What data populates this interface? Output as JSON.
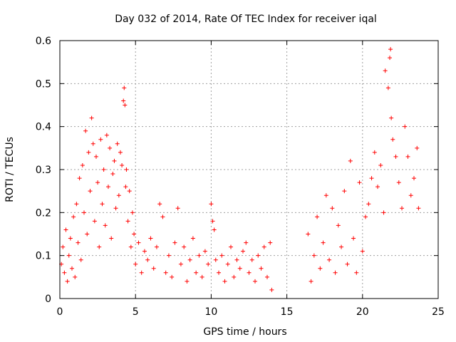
{
  "chart_data": {
    "type": "scatter",
    "title": "Day 032 of 2014, Rate Of TEC Index for receiver iqal",
    "xlabel": "GPS time / hours",
    "ylabel": "ROTI / TECUs",
    "xlim": [
      0,
      25
    ],
    "ylim": [
      0,
      0.6
    ],
    "x_ticks": [
      0,
      5,
      10,
      15,
      20,
      25
    ],
    "y_ticks": [
      0,
      0.1,
      0.2,
      0.3,
      0.4,
      0.5,
      0.6
    ],
    "x_tick_labels": [
      "0",
      "5",
      "10",
      "15",
      "20",
      "25"
    ],
    "y_tick_labels": [
      "0",
      "0.1",
      "0.2",
      "0.3",
      "0.4",
      "0.5",
      "0.6"
    ],
    "grid": true,
    "marker": "+",
    "marker_color": "#ff0000",
    "series": [
      {
        "name": "ROTI",
        "points": [
          [
            0.1,
            0.08
          ],
          [
            0.2,
            0.12
          ],
          [
            0.3,
            0.06
          ],
          [
            0.4,
            0.16
          ],
          [
            0.5,
            0.04
          ],
          [
            0.6,
            0.1
          ],
          [
            0.7,
            0.14
          ],
          [
            0.8,
            0.07
          ],
          [
            0.9,
            0.19
          ],
          [
            1.0,
            0.05
          ],
          [
            1.1,
            0.22
          ],
          [
            1.2,
            0.13
          ],
          [
            1.3,
            0.28
          ],
          [
            1.4,
            0.09
          ],
          [
            1.5,
            0.31
          ],
          [
            1.6,
            0.2
          ],
          [
            1.7,
            0.39
          ],
          [
            1.8,
            0.15
          ],
          [
            1.9,
            0.34
          ],
          [
            2.0,
            0.25
          ],
          [
            2.1,
            0.42
          ],
          [
            2.2,
            0.36
          ],
          [
            2.3,
            0.18
          ],
          [
            2.4,
            0.33
          ],
          [
            2.5,
            0.27
          ],
          [
            2.6,
            0.12
          ],
          [
            2.7,
            0.37
          ],
          [
            2.8,
            0.22
          ],
          [
            2.9,
            0.3
          ],
          [
            3.0,
            0.17
          ],
          [
            3.1,
            0.38
          ],
          [
            3.2,
            0.26
          ],
          [
            3.3,
            0.35
          ],
          [
            3.4,
            0.14
          ],
          [
            3.5,
            0.29
          ],
          [
            3.6,
            0.32
          ],
          [
            3.7,
            0.21
          ],
          [
            3.8,
            0.36
          ],
          [
            3.9,
            0.24
          ],
          [
            4.0,
            0.34
          ],
          [
            4.1,
            0.31
          ],
          [
            4.2,
            0.46
          ],
          [
            4.25,
            0.49
          ],
          [
            4.3,
            0.45
          ],
          [
            4.35,
            0.26
          ],
          [
            4.4,
            0.3
          ],
          [
            4.5,
            0.18
          ],
          [
            4.6,
            0.25
          ],
          [
            4.7,
            0.12
          ],
          [
            4.8,
            0.2
          ],
          [
            4.9,
            0.15
          ],
          [
            5.0,
            0.08
          ],
          [
            5.2,
            0.13
          ],
          [
            5.4,
            0.06
          ],
          [
            5.6,
            0.11
          ],
          [
            5.8,
            0.09
          ],
          [
            6.0,
            0.14
          ],
          [
            6.2,
            0.07
          ],
          [
            6.4,
            0.12
          ],
          [
            6.6,
            0.22
          ],
          [
            6.8,
            0.19
          ],
          [
            7.0,
            0.06
          ],
          [
            7.2,
            0.1
          ],
          [
            7.4,
            0.05
          ],
          [
            7.6,
            0.13
          ],
          [
            7.8,
            0.21
          ],
          [
            8.0,
            0.08
          ],
          [
            8.2,
            0.12
          ],
          [
            8.4,
            0.04
          ],
          [
            8.6,
            0.09
          ],
          [
            8.8,
            0.14
          ],
          [
            9.0,
            0.06
          ],
          [
            9.2,
            0.1
          ],
          [
            9.4,
            0.05
          ],
          [
            9.6,
            0.11
          ],
          [
            9.8,
            0.08
          ],
          [
            10.0,
            0.22
          ],
          [
            10.1,
            0.18
          ],
          [
            10.2,
            0.16
          ],
          [
            10.3,
            0.09
          ],
          [
            10.5,
            0.06
          ],
          [
            10.7,
            0.1
          ],
          [
            10.9,
            0.04
          ],
          [
            11.1,
            0.08
          ],
          [
            11.3,
            0.12
          ],
          [
            11.5,
            0.05
          ],
          [
            11.7,
            0.09
          ],
          [
            11.9,
            0.07
          ],
          [
            12.1,
            0.11
          ],
          [
            12.3,
            0.13
          ],
          [
            12.5,
            0.06
          ],
          [
            12.7,
            0.09
          ],
          [
            12.9,
            0.04
          ],
          [
            13.1,
            0.1
          ],
          [
            13.3,
            0.07
          ],
          [
            13.5,
            0.12
          ],
          [
            13.7,
            0.05
          ],
          [
            13.9,
            0.13
          ],
          [
            14.0,
            0.02
          ],
          [
            16.4,
            0.15
          ],
          [
            16.6,
            0.04
          ],
          [
            16.8,
            0.1
          ],
          [
            17.0,
            0.19
          ],
          [
            17.2,
            0.07
          ],
          [
            17.4,
            0.13
          ],
          [
            17.6,
            0.24
          ],
          [
            17.8,
            0.09
          ],
          [
            18.0,
            0.21
          ],
          [
            18.2,
            0.06
          ],
          [
            18.4,
            0.17
          ],
          [
            18.6,
            0.12
          ],
          [
            18.8,
            0.25
          ],
          [
            19.0,
            0.08
          ],
          [
            19.2,
            0.32
          ],
          [
            19.4,
            0.14
          ],
          [
            19.6,
            0.06
          ],
          [
            19.8,
            0.27
          ],
          [
            20.0,
            0.11
          ],
          [
            20.2,
            0.19
          ],
          [
            20.4,
            0.22
          ],
          [
            20.6,
            0.28
          ],
          [
            20.8,
            0.34
          ],
          [
            21.0,
            0.26
          ],
          [
            21.2,
            0.31
          ],
          [
            21.4,
            0.2
          ],
          [
            21.5,
            0.53
          ],
          [
            21.7,
            0.49
          ],
          [
            21.8,
            0.56
          ],
          [
            21.85,
            0.58
          ],
          [
            21.9,
            0.42
          ],
          [
            22.0,
            0.37
          ],
          [
            22.2,
            0.33
          ],
          [
            22.4,
            0.27
          ],
          [
            22.6,
            0.21
          ],
          [
            22.8,
            0.4
          ],
          [
            23.0,
            0.33
          ],
          [
            23.2,
            0.24
          ],
          [
            23.4,
            0.28
          ],
          [
            23.6,
            0.35
          ],
          [
            23.7,
            0.21
          ]
        ]
      }
    ]
  }
}
